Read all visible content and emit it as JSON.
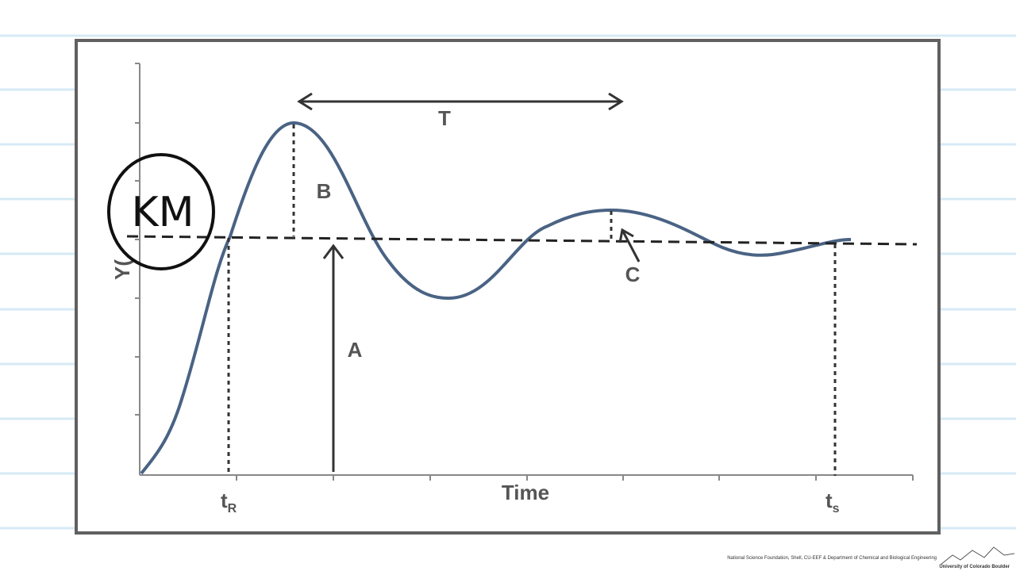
{
  "diagram": {
    "y_axis_label": "Y(",
    "x_axis_label": "Time",
    "period_label": "T",
    "overshoot_label": "B",
    "steady_state_label": "A",
    "decay_label": "C",
    "rise_time_label": {
      "main": "t",
      "sub": "R"
    },
    "settling_time_label": {
      "main": "t",
      "sub": "s"
    },
    "gain_annotation": "KM"
  },
  "footer": {
    "credit": "National Science Foundation, Shell, CU-EEF & Department of Chemical and Biological Engineering",
    "university": "University of Colorado Boulder"
  }
}
